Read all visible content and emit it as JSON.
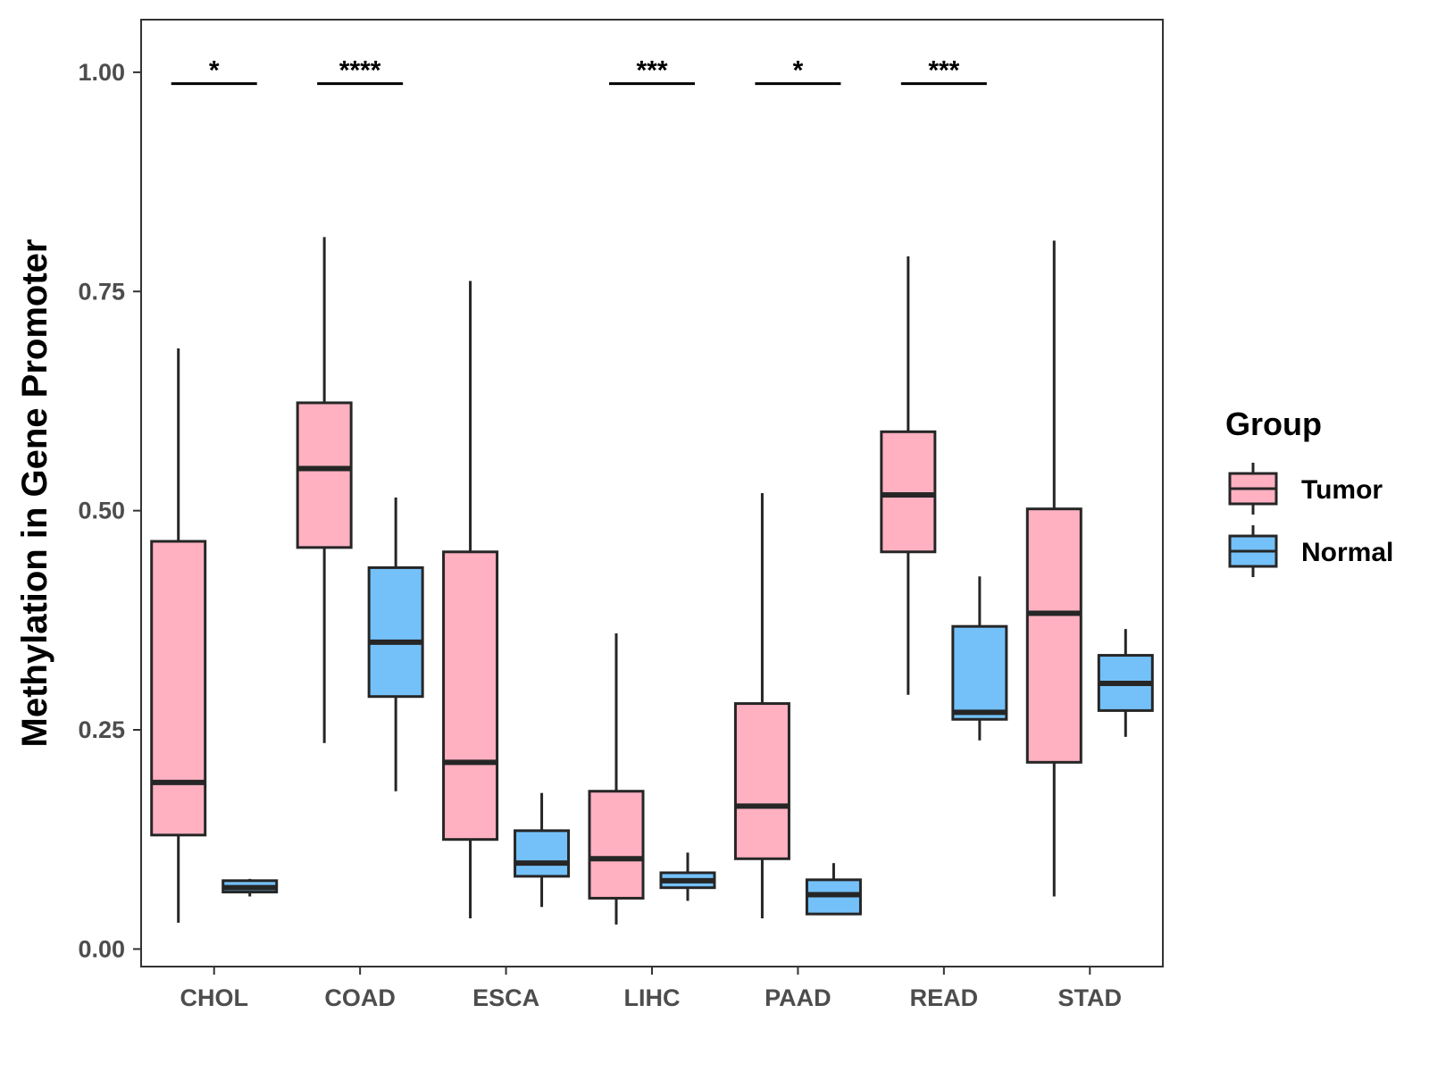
{
  "chart_data": {
    "type": "boxplot",
    "title": "",
    "xlabel": "",
    "ylabel": "Methylation in Gene Promoter",
    "ylim": [
      -0.02,
      1.06
    ],
    "yticks": [
      0.0,
      0.25,
      0.5,
      0.75,
      1.0
    ],
    "ytick_labels": [
      "0.00",
      "0.25",
      "0.50",
      "0.75",
      "1.00"
    ],
    "categories": [
      "CHOL",
      "COAD",
      "ESCA",
      "LIHC",
      "PAAD",
      "READ",
      "STAD"
    ],
    "legend": {
      "title": "Group",
      "placement": "right",
      "items": [
        {
          "name": "Tumor",
          "color": "#ffb1c2"
        },
        {
          "name": "Normal",
          "color": "#74c1fa"
        }
      ]
    },
    "series": [
      {
        "name": "Tumor",
        "color": "#ffb1c2",
        "boxes": [
          {
            "category": "CHOL",
            "min": 0.03,
            "q1": 0.13,
            "median": 0.19,
            "q3": 0.465,
            "max": 0.685
          },
          {
            "category": "COAD",
            "min": 0.235,
            "q1": 0.458,
            "median": 0.548,
            "q3": 0.623,
            "max": 0.812
          },
          {
            "category": "ESCA",
            "min": 0.035,
            "q1": 0.125,
            "median": 0.213,
            "q3": 0.453,
            "max": 0.762
          },
          {
            "category": "LIHC",
            "min": 0.028,
            "q1": 0.058,
            "median": 0.103,
            "q3": 0.18,
            "max": 0.36
          },
          {
            "category": "PAAD",
            "min": 0.035,
            "q1": 0.103,
            "median": 0.163,
            "q3": 0.28,
            "max": 0.52
          },
          {
            "category": "READ",
            "min": 0.29,
            "q1": 0.453,
            "median": 0.518,
            "q3": 0.59,
            "max": 0.79
          },
          {
            "category": "STAD",
            "min": 0.06,
            "q1": 0.213,
            "median": 0.383,
            "q3": 0.502,
            "max": 0.808
          }
        ]
      },
      {
        "name": "Normal",
        "color": "#74c1fa",
        "boxes": [
          {
            "category": "CHOL",
            "min": 0.06,
            "q1": 0.065,
            "median": 0.07,
            "q3": 0.078,
            "max": 0.08
          },
          {
            "category": "COAD",
            "min": 0.18,
            "q1": 0.288,
            "median": 0.35,
            "q3": 0.435,
            "max": 0.515
          },
          {
            "category": "ESCA",
            "min": 0.048,
            "q1": 0.083,
            "median": 0.098,
            "q3": 0.135,
            "max": 0.178
          },
          {
            "category": "LIHC",
            "min": 0.055,
            "q1": 0.07,
            "median": 0.078,
            "q3": 0.087,
            "max": 0.11
          },
          {
            "category": "PAAD",
            "min": 0.04,
            "q1": 0.04,
            "median": 0.062,
            "q3": 0.079,
            "max": 0.098
          },
          {
            "category": "READ",
            "min": 0.238,
            "q1": 0.262,
            "median": 0.27,
            "q3": 0.368,
            "max": 0.425
          },
          {
            "category": "STAD",
            "min": 0.242,
            "q1": 0.272,
            "median": 0.303,
            "q3": 0.335,
            "max": 0.365
          }
        ]
      }
    ],
    "significance": [
      {
        "category": "CHOL",
        "label": "*",
        "y": 0.987
      },
      {
        "category": "COAD",
        "label": "****",
        "y": 0.987
      },
      {
        "category": "LIHC",
        "label": "***",
        "y": 0.987
      },
      {
        "category": "PAAD",
        "label": "*",
        "y": 0.987
      },
      {
        "category": "READ",
        "label": "***",
        "y": 0.987
      }
    ]
  }
}
